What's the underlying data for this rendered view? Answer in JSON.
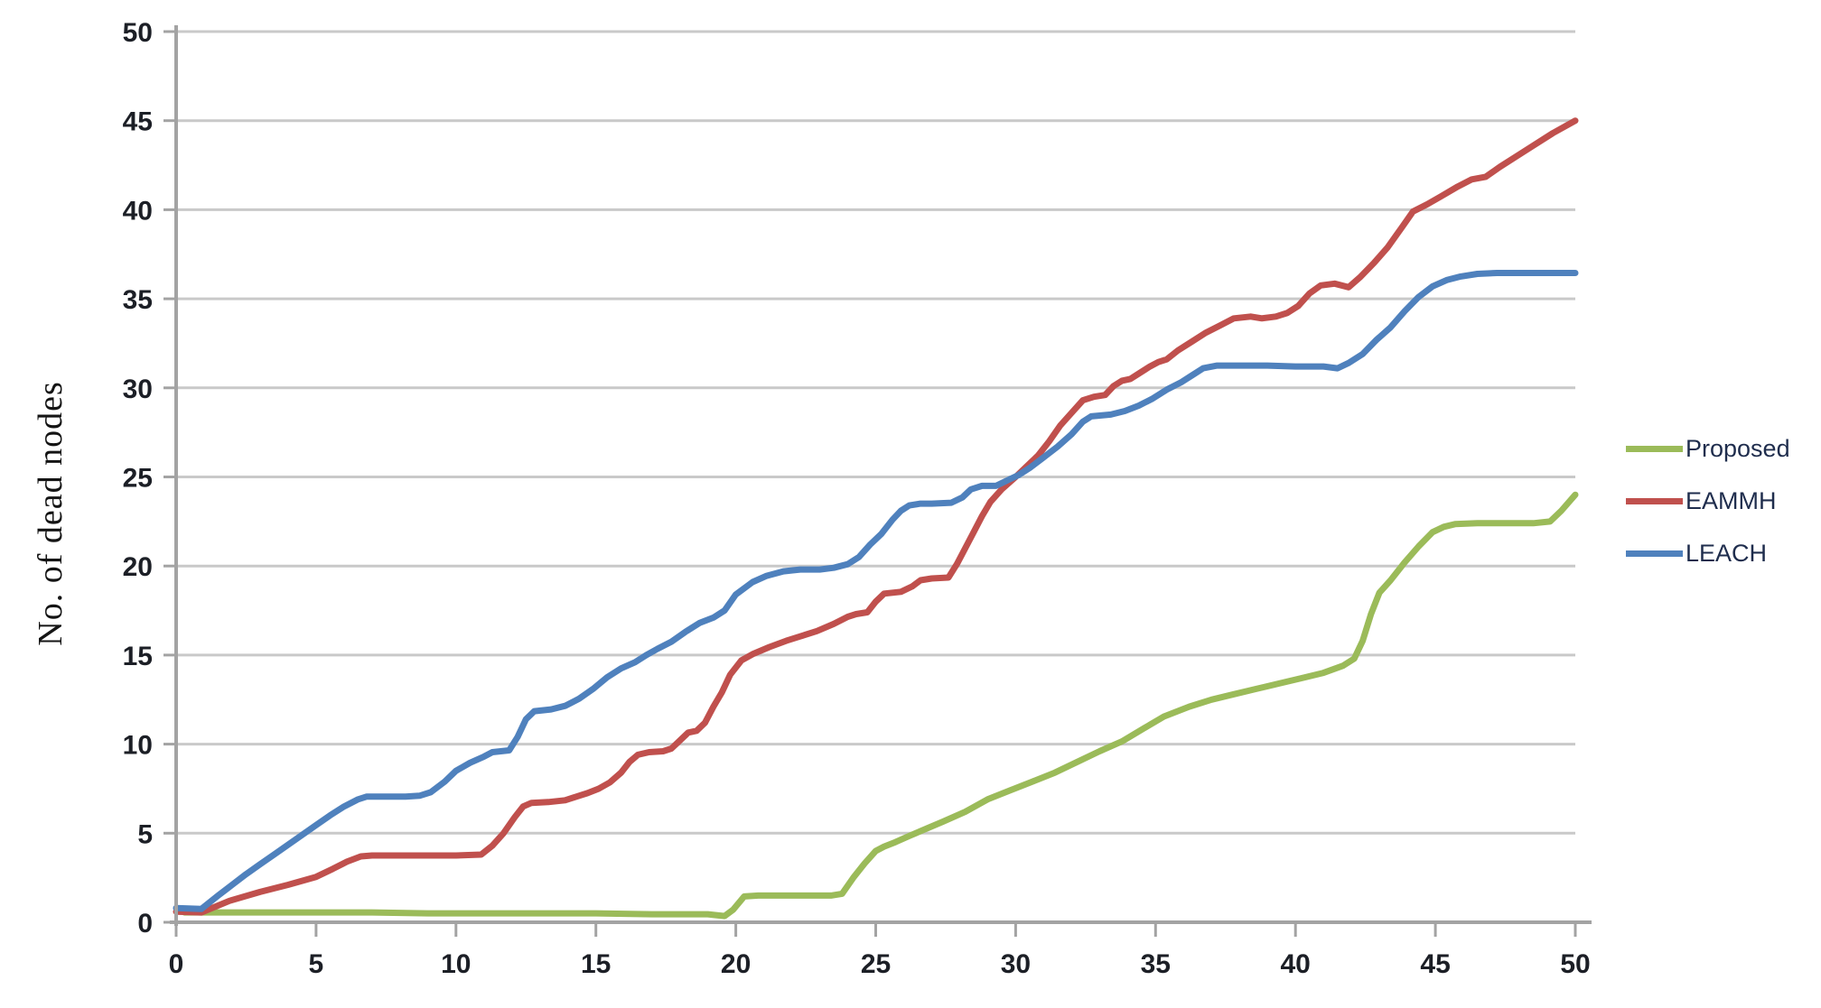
{
  "chart_data": {
    "type": "line",
    "title": "",
    "xlabel": "",
    "ylabel": "No. of dead nodes",
    "xlim": [
      0,
      50
    ],
    "ylim": [
      0,
      50
    ],
    "x_ticks": [
      0,
      5,
      10,
      15,
      20,
      25,
      30,
      35,
      40,
      45,
      50
    ],
    "y_ticks": [
      0,
      5,
      10,
      15,
      20,
      25,
      30,
      35,
      40,
      45,
      50
    ],
    "grid": "horizontal gridlines on, vertical off",
    "legend_position": "right",
    "gridline_color": "#c9c9c9",
    "axis_color": "#a3a3a3",
    "tick_label_color": "#1c1f26",
    "series": [
      {
        "name": "Proposed",
        "color": "#9bbb59",
        "points": [
          [
            0.3,
            0.55
          ],
          [
            1,
            0.55
          ],
          [
            3,
            0.55
          ],
          [
            5,
            0.55
          ],
          [
            7,
            0.55
          ],
          [
            9,
            0.5
          ],
          [
            11,
            0.5
          ],
          [
            13,
            0.5
          ],
          [
            15,
            0.5
          ],
          [
            17,
            0.45
          ],
          [
            19,
            0.45
          ],
          [
            19.6,
            0.35
          ],
          [
            19.9,
            0.7
          ],
          [
            20.3,
            1.45
          ],
          [
            20.8,
            1.5
          ],
          [
            21.6,
            1.5
          ],
          [
            22.5,
            1.5
          ],
          [
            23.4,
            1.5
          ],
          [
            23.8,
            1.6
          ],
          [
            24.2,
            2.5
          ],
          [
            24.6,
            3.3
          ],
          [
            25,
            4
          ],
          [
            25.3,
            4.25
          ],
          [
            25.7,
            4.5
          ],
          [
            26.2,
            4.85
          ],
          [
            26.8,
            5.25
          ],
          [
            27.4,
            5.65
          ],
          [
            28.2,
            6.2
          ],
          [
            29,
            6.9
          ],
          [
            29.8,
            7.4
          ],
          [
            30.6,
            7.9
          ],
          [
            31.4,
            8.4
          ],
          [
            32.2,
            9
          ],
          [
            33,
            9.6
          ],
          [
            33.8,
            10.15
          ],
          [
            34.6,
            10.9
          ],
          [
            35.3,
            11.55
          ],
          [
            36.2,
            12.1
          ],
          [
            37,
            12.5
          ],
          [
            37.8,
            12.8
          ],
          [
            38.6,
            13.1
          ],
          [
            39.4,
            13.4
          ],
          [
            40.2,
            13.7
          ],
          [
            41,
            14
          ],
          [
            41.7,
            14.4
          ],
          [
            42.1,
            14.8
          ],
          [
            42.4,
            15.8
          ],
          [
            42.7,
            17.3
          ],
          [
            43,
            18.5
          ],
          [
            43.4,
            19.2
          ],
          [
            43.9,
            20.2
          ],
          [
            44.4,
            21.1
          ],
          [
            44.9,
            21.9
          ],
          [
            45.3,
            22.2
          ],
          [
            45.7,
            22.35
          ],
          [
            46.5,
            22.4
          ],
          [
            47.5,
            22.4
          ],
          [
            48.5,
            22.4
          ],
          [
            49.1,
            22.5
          ],
          [
            49.5,
            23.1
          ],
          [
            50,
            24
          ]
        ]
      },
      {
        "name": "EAMMH",
        "color": "#c0504d",
        "points": [
          [
            0,
            0.6
          ],
          [
            0.9,
            0.55
          ],
          [
            1.9,
            1.2
          ],
          [
            3,
            1.7
          ],
          [
            4,
            2.1
          ],
          [
            5,
            2.55
          ],
          [
            5.6,
            3
          ],
          [
            6.1,
            3.4
          ],
          [
            6.6,
            3.7
          ],
          [
            7,
            3.75
          ],
          [
            8,
            3.75
          ],
          [
            9,
            3.75
          ],
          [
            10,
            3.75
          ],
          [
            10.9,
            3.8
          ],
          [
            11.3,
            4.3
          ],
          [
            11.7,
            5
          ],
          [
            12.1,
            5.9
          ],
          [
            12.4,
            6.5
          ],
          [
            12.7,
            6.7
          ],
          [
            13.3,
            6.75
          ],
          [
            13.9,
            6.85
          ],
          [
            14.3,
            7.05
          ],
          [
            14.7,
            7.25
          ],
          [
            15.1,
            7.5
          ],
          [
            15.5,
            7.85
          ],
          [
            15.9,
            8.4
          ],
          [
            16.2,
            9
          ],
          [
            16.5,
            9.4
          ],
          [
            16.9,
            9.55
          ],
          [
            17.4,
            9.6
          ],
          [
            17.7,
            9.75
          ],
          [
            18,
            10.2
          ],
          [
            18.3,
            10.65
          ],
          [
            18.6,
            10.75
          ],
          [
            18.9,
            11.2
          ],
          [
            19.2,
            12.1
          ],
          [
            19.5,
            12.9
          ],
          [
            19.8,
            13.9
          ],
          [
            20.2,
            14.7
          ],
          [
            20.6,
            15.05
          ],
          [
            21.2,
            15.45
          ],
          [
            21.8,
            15.8
          ],
          [
            22.3,
            16.05
          ],
          [
            22.9,
            16.35
          ],
          [
            23.5,
            16.75
          ],
          [
            24,
            17.15
          ],
          [
            24.3,
            17.3
          ],
          [
            24.7,
            17.4
          ],
          [
            25,
            18
          ],
          [
            25.3,
            18.45
          ],
          [
            25.9,
            18.55
          ],
          [
            26.3,
            18.85
          ],
          [
            26.6,
            19.2
          ],
          [
            27,
            19.3
          ],
          [
            27.6,
            19.35
          ],
          [
            27.9,
            20.1
          ],
          [
            28.2,
            21
          ],
          [
            28.5,
            21.9
          ],
          [
            28.8,
            22.8
          ],
          [
            29.1,
            23.6
          ],
          [
            29.5,
            24.3
          ],
          [
            30,
            25
          ],
          [
            30.4,
            25.6
          ],
          [
            30.8,
            26.2
          ],
          [
            31.2,
            27
          ],
          [
            31.6,
            27.9
          ],
          [
            32,
            28.6
          ],
          [
            32.4,
            29.3
          ],
          [
            32.8,
            29.5
          ],
          [
            33.2,
            29.6
          ],
          [
            33.5,
            30.1
          ],
          [
            33.8,
            30.4
          ],
          [
            34.1,
            30.5
          ],
          [
            34.4,
            30.8
          ],
          [
            34.8,
            31.2
          ],
          [
            35.1,
            31.45
          ],
          [
            35.4,
            31.6
          ],
          [
            35.8,
            32.1
          ],
          [
            36.3,
            32.6
          ],
          [
            36.8,
            33.1
          ],
          [
            37.3,
            33.5
          ],
          [
            37.8,
            33.9
          ],
          [
            38.4,
            34
          ],
          [
            38.8,
            33.9
          ],
          [
            39.3,
            34
          ],
          [
            39.7,
            34.2
          ],
          [
            40.1,
            34.6
          ],
          [
            40.5,
            35.3
          ],
          [
            40.9,
            35.75
          ],
          [
            41.4,
            35.85
          ],
          [
            41.9,
            35.65
          ],
          [
            42.3,
            36.2
          ],
          [
            42.8,
            37
          ],
          [
            43.3,
            37.9
          ],
          [
            43.8,
            39
          ],
          [
            44.2,
            39.9
          ],
          [
            44.7,
            40.3
          ],
          [
            45.2,
            40.75
          ],
          [
            45.8,
            41.3
          ],
          [
            46.3,
            41.7
          ],
          [
            46.8,
            41.85
          ],
          [
            47.3,
            42.4
          ],
          [
            47.9,
            43
          ],
          [
            48.5,
            43.6
          ],
          [
            49.2,
            44.3
          ],
          [
            50,
            45
          ]
        ]
      },
      {
        "name": "LEACH",
        "color": "#4f81bd",
        "points": [
          [
            0,
            0.8
          ],
          [
            0.9,
            0.75
          ],
          [
            1.5,
            1.5
          ],
          [
            2,
            2.1
          ],
          [
            2.5,
            2.7
          ],
          [
            3,
            3.25
          ],
          [
            3.5,
            3.8
          ],
          [
            4,
            4.35
          ],
          [
            4.5,
            4.9
          ],
          [
            5,
            5.45
          ],
          [
            5.5,
            6
          ],
          [
            6,
            6.5
          ],
          [
            6.5,
            6.9
          ],
          [
            6.8,
            7.05
          ],
          [
            7.5,
            7.05
          ],
          [
            8.2,
            7.05
          ],
          [
            8.7,
            7.1
          ],
          [
            9.1,
            7.3
          ],
          [
            9.6,
            7.9
          ],
          [
            10,
            8.5
          ],
          [
            10.5,
            8.95
          ],
          [
            11,
            9.3
          ],
          [
            11.3,
            9.55
          ],
          [
            11.9,
            9.65
          ],
          [
            12.2,
            10.4
          ],
          [
            12.5,
            11.4
          ],
          [
            12.8,
            11.85
          ],
          [
            13.4,
            11.95
          ],
          [
            13.9,
            12.15
          ],
          [
            14.4,
            12.55
          ],
          [
            14.9,
            13.1
          ],
          [
            15.4,
            13.75
          ],
          [
            15.9,
            14.25
          ],
          [
            16.4,
            14.6
          ],
          [
            16.8,
            15
          ],
          [
            17.2,
            15.35
          ],
          [
            17.7,
            15.75
          ],
          [
            18.2,
            16.3
          ],
          [
            18.7,
            16.8
          ],
          [
            19.2,
            17.1
          ],
          [
            19.6,
            17.5
          ],
          [
            20,
            18.4
          ],
          [
            20.6,
            19.1
          ],
          [
            21.1,
            19.45
          ],
          [
            21.7,
            19.7
          ],
          [
            22.3,
            19.8
          ],
          [
            23,
            19.8
          ],
          [
            23.5,
            19.9
          ],
          [
            24,
            20.1
          ],
          [
            24.4,
            20.5
          ],
          [
            24.8,
            21.2
          ],
          [
            25.2,
            21.8
          ],
          [
            25.6,
            22.6
          ],
          [
            25.9,
            23.1
          ],
          [
            26.2,
            23.4
          ],
          [
            26.6,
            23.5
          ],
          [
            27,
            23.5
          ],
          [
            27.7,
            23.55
          ],
          [
            28.1,
            23.85
          ],
          [
            28.4,
            24.3
          ],
          [
            28.8,
            24.5
          ],
          [
            29.3,
            24.5
          ],
          [
            29.7,
            24.8
          ],
          [
            30.1,
            25.1
          ],
          [
            30.5,
            25.5
          ],
          [
            31,
            26.1
          ],
          [
            31.5,
            26.7
          ],
          [
            32,
            27.4
          ],
          [
            32.4,
            28.1
          ],
          [
            32.7,
            28.4
          ],
          [
            33.4,
            28.5
          ],
          [
            33.9,
            28.7
          ],
          [
            34.4,
            29
          ],
          [
            34.9,
            29.4
          ],
          [
            35.4,
            29.9
          ],
          [
            35.9,
            30.3
          ],
          [
            36.3,
            30.7
          ],
          [
            36.7,
            31.1
          ],
          [
            37.2,
            31.25
          ],
          [
            38,
            31.25
          ],
          [
            39,
            31.25
          ],
          [
            40,
            31.2
          ],
          [
            41,
            31.2
          ],
          [
            41.5,
            31.1
          ],
          [
            41.9,
            31.4
          ],
          [
            42.4,
            31.9
          ],
          [
            42.9,
            32.7
          ],
          [
            43.4,
            33.4
          ],
          [
            43.9,
            34.3
          ],
          [
            44.4,
            35.1
          ],
          [
            44.9,
            35.7
          ],
          [
            45.4,
            36.05
          ],
          [
            45.9,
            36.25
          ],
          [
            46.5,
            36.4
          ],
          [
            47.2,
            36.45
          ],
          [
            48,
            36.45
          ],
          [
            49,
            36.45
          ],
          [
            50,
            36.45
          ]
        ]
      }
    ],
    "legend": [
      {
        "label": "Proposed",
        "color": "#9bbb59"
      },
      {
        "label": "EAMMH",
        "color": "#c0504d"
      },
      {
        "label": "LEACH",
        "color": "#4f81bd"
      }
    ]
  }
}
